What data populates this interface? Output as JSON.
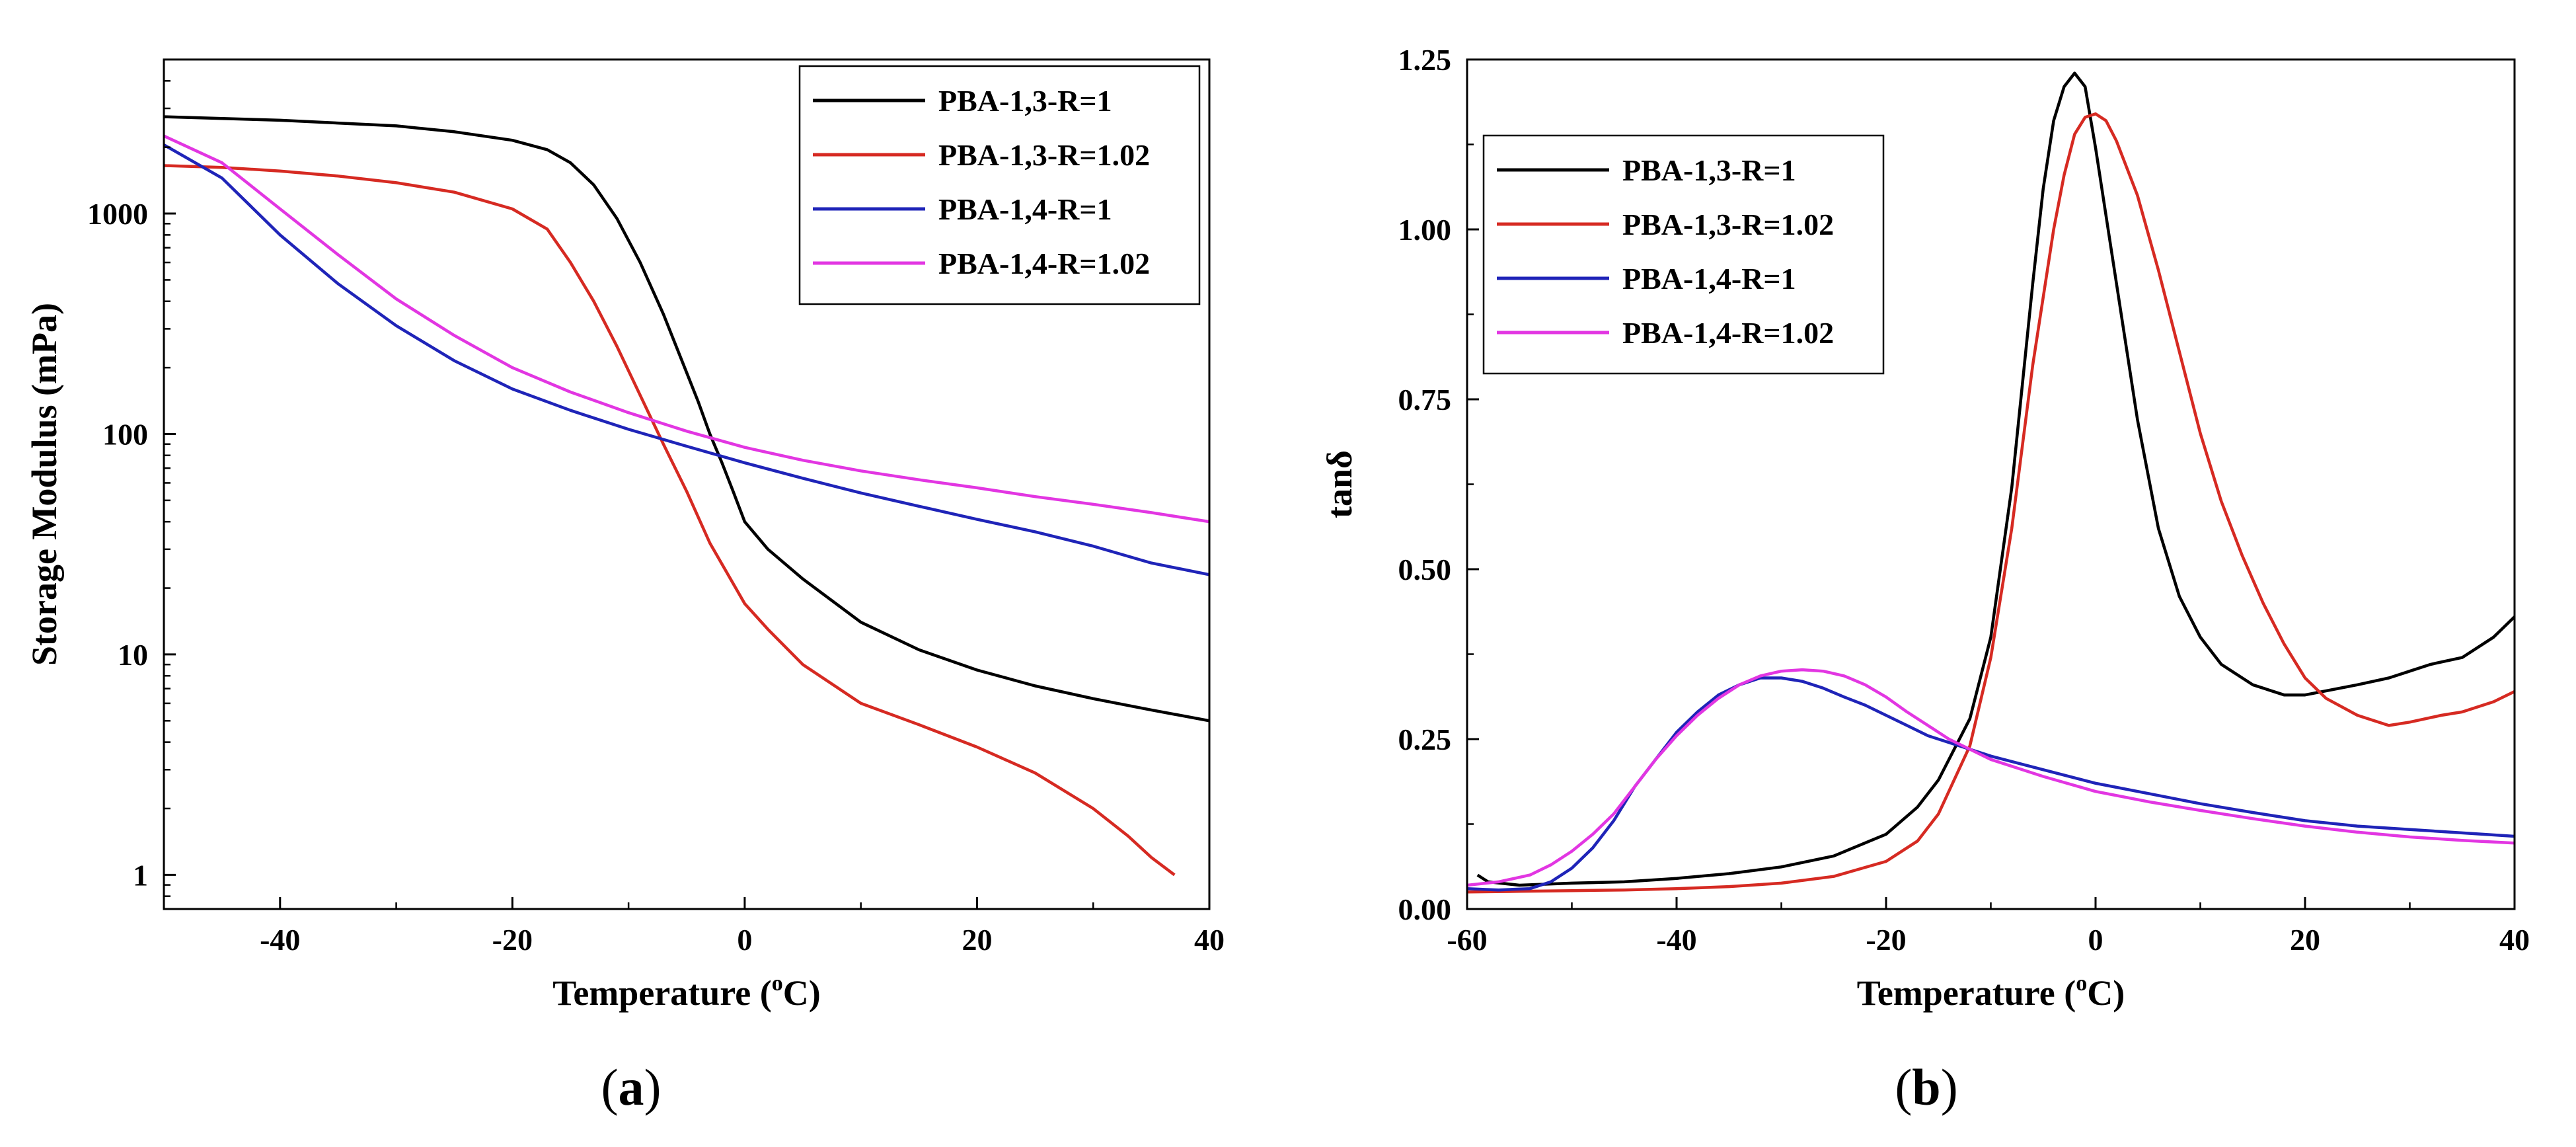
{
  "chart_data": [
    {
      "type": "line",
      "panel": "a",
      "panel_label": "a",
      "xlabel": "Temperature (",
      "xlabel_sup": "o",
      "xlabel_unit": "C)",
      "ylabel": "Storage Modulus (mPa)",
      "xlim": [
        -50,
        40
      ],
      "ylim": [
        0.7,
        5000
      ],
      "yscale": "log",
      "xticks": [
        -40,
        -20,
        0,
        20,
        40
      ],
      "xtick_labels": [
        "-40",
        "-20",
        "0",
        "20",
        "40"
      ],
      "yticks": [
        1,
        10,
        100,
        1000
      ],
      "ytick_labels": [
        "1",
        "10",
        "100",
        "1000"
      ],
      "legend_position": "top-right",
      "series": [
        {
          "name": "PBA-1,3-R=1",
          "color": "#000000",
          "x": [
            -50,
            -40,
            -30,
            -25,
            -20,
            -17,
            -15,
            -13,
            -11,
            -9,
            -7,
            -5,
            -4,
            -3,
            -2,
            -1,
            0,
            2,
            5,
            10,
            15,
            20,
            25,
            30,
            35,
            40
          ],
          "y": [
            2750,
            2650,
            2500,
            2350,
            2150,
            1950,
            1700,
            1350,
            950,
            600,
            350,
            190,
            140,
            100,
            75,
            55,
            40,
            30,
            22,
            14,
            10.5,
            8.5,
            7.2,
            6.3,
            5.6,
            5.0
          ]
        },
        {
          "name": "PBA-1,3-R=1.02",
          "color": "#d62a22",
          "x": [
            -50,
            -45,
            -40,
            -35,
            -30,
            -25,
            -20,
            -17,
            -15,
            -13,
            -11,
            -9,
            -7,
            -5,
            -3,
            -1,
            0,
            2,
            5,
            10,
            15,
            20,
            25,
            30,
            33,
            35,
            37
          ],
          "y": [
            1650,
            1620,
            1560,
            1480,
            1380,
            1250,
            1050,
            850,
            600,
            400,
            250,
            150,
            90,
            55,
            32,
            21,
            17,
            13,
            9,
            6,
            4.8,
            3.8,
            2.9,
            2.0,
            1.5,
            1.2,
            1.0
          ]
        },
        {
          "name": "PBA-1,4-R=1",
          "color": "#1f24b8",
          "x": [
            -50,
            -45,
            -40,
            -35,
            -30,
            -25,
            -20,
            -15,
            -10,
            -5,
            0,
            5,
            10,
            15,
            20,
            25,
            30,
            35,
            40
          ],
          "y": [
            2050,
            1450,
            800,
            480,
            310,
            215,
            160,
            128,
            105,
            88,
            74,
            63,
            54,
            47,
            41,
            36,
            31,
            26,
            23
          ]
        },
        {
          "name": "PBA-1,4-R=1.02",
          "color": "#e236e2",
          "x": [
            -50,
            -45,
            -40,
            -35,
            -30,
            -25,
            -20,
            -15,
            -10,
            -5,
            0,
            5,
            10,
            15,
            20,
            25,
            30,
            35,
            40
          ],
          "y": [
            2250,
            1700,
            1050,
            650,
            410,
            280,
            200,
            155,
            125,
            103,
            87,
            76,
            68,
            62,
            57,
            52,
            48,
            44,
            40
          ]
        }
      ]
    },
    {
      "type": "line",
      "panel": "b",
      "panel_label": "b",
      "xlabel": "Temperature (",
      "xlabel_sup": "o",
      "xlabel_unit": "C)",
      "ylabel": "tanδ",
      "xlim": [
        -60,
        40
      ],
      "ylim": [
        0,
        1.25
      ],
      "yscale": "linear",
      "xticks": [
        -60,
        -40,
        -20,
        0,
        20,
        40
      ],
      "xtick_labels": [
        "-60",
        "-40",
        "-20",
        "0",
        "20",
        "40"
      ],
      "yticks": [
        0,
        0.25,
        0.5,
        0.75,
        1.0,
        1.25
      ],
      "ytick_labels": [
        "0.00",
        "0.25",
        "0.50",
        "0.75",
        "1.00",
        "1.25"
      ],
      "legend_position": "top-left",
      "series": [
        {
          "name": "PBA-1,3-R=1",
          "color": "#000000",
          "x": [
            -59,
            -58,
            -55,
            -50,
            -45,
            -40,
            -35,
            -30,
            -25,
            -20,
            -17,
            -15,
            -12,
            -10,
            -8,
            -6,
            -5,
            -4,
            -3,
            -2,
            -1,
            0,
            2,
            4,
            6,
            8,
            10,
            12,
            15,
            18,
            20,
            25,
            28,
            30,
            32,
            35,
            38,
            40
          ],
          "y": [
            0.05,
            0.04,
            0.035,
            0.038,
            0.04,
            0.045,
            0.052,
            0.062,
            0.078,
            0.11,
            0.15,
            0.19,
            0.28,
            0.4,
            0.62,
            0.92,
            1.06,
            1.16,
            1.21,
            1.23,
            1.21,
            1.12,
            0.92,
            0.72,
            0.56,
            0.46,
            0.4,
            0.36,
            0.33,
            0.315,
            0.315,
            0.33,
            0.34,
            0.35,
            0.36,
            0.37,
            0.4,
            0.43
          ]
        },
        {
          "name": "PBA-1,3-R=1.02",
          "color": "#d62a22",
          "x": [
            -60,
            -55,
            -50,
            -45,
            -40,
            -35,
            -30,
            -25,
            -20,
            -17,
            -15,
            -12,
            -10,
            -8,
            -6,
            -4,
            -3,
            -2,
            -1,
            0,
            1,
            2,
            4,
            6,
            8,
            10,
            12,
            14,
            16,
            18,
            20,
            22,
            25,
            28,
            30,
            33,
            35,
            38,
            40
          ],
          "y": [
            0.025,
            0.026,
            0.027,
            0.028,
            0.03,
            0.033,
            0.038,
            0.048,
            0.07,
            0.1,
            0.14,
            0.24,
            0.37,
            0.56,
            0.8,
            1.0,
            1.08,
            1.14,
            1.165,
            1.17,
            1.16,
            1.13,
            1.05,
            0.94,
            0.82,
            0.7,
            0.6,
            0.52,
            0.45,
            0.39,
            0.34,
            0.31,
            0.285,
            0.27,
            0.275,
            0.285,
            0.29,
            0.305,
            0.32
          ]
        },
        {
          "name": "PBA-1,4-R=1",
          "color": "#1f24b8",
          "x": [
            -60,
            -57,
            -54,
            -52,
            -50,
            -48,
            -46,
            -44,
            -42,
            -40,
            -38,
            -36,
            -34,
            -32,
            -30,
            -28,
            -26,
            -24,
            -22,
            -20,
            -18,
            -16,
            -14,
            -12,
            -10,
            -5,
            0,
            5,
            10,
            15,
            20,
            25,
            30,
            35,
            40
          ],
          "y": [
            0.03,
            0.028,
            0.03,
            0.04,
            0.06,
            0.09,
            0.13,
            0.18,
            0.22,
            0.26,
            0.29,
            0.315,
            0.33,
            0.34,
            0.34,
            0.335,
            0.325,
            0.312,
            0.3,
            0.285,
            0.27,
            0.255,
            0.245,
            0.235,
            0.225,
            0.205,
            0.185,
            0.17,
            0.155,
            0.142,
            0.13,
            0.122,
            0.117,
            0.112,
            0.107
          ]
        },
        {
          "name": "PBA-1,4-R=1.02",
          "color": "#e236e2",
          "x": [
            -60,
            -57,
            -54,
            -52,
            -50,
            -48,
            -46,
            -44,
            -42,
            -40,
            -38,
            -36,
            -34,
            -32,
            -30,
            -28,
            -26,
            -24,
            -22,
            -20,
            -18,
            -16,
            -14,
            -12,
            -10,
            -5,
            0,
            5,
            10,
            15,
            20,
            25,
            30,
            35,
            40
          ],
          "y": [
            0.035,
            0.04,
            0.05,
            0.065,
            0.085,
            0.11,
            0.14,
            0.18,
            0.22,
            0.255,
            0.285,
            0.31,
            0.33,
            0.343,
            0.35,
            0.352,
            0.35,
            0.343,
            0.33,
            0.312,
            0.29,
            0.27,
            0.25,
            0.235,
            0.22,
            0.195,
            0.173,
            0.158,
            0.145,
            0.133,
            0.122,
            0.113,
            0.106,
            0.101,
            0.097
          ]
        }
      ]
    }
  ]
}
